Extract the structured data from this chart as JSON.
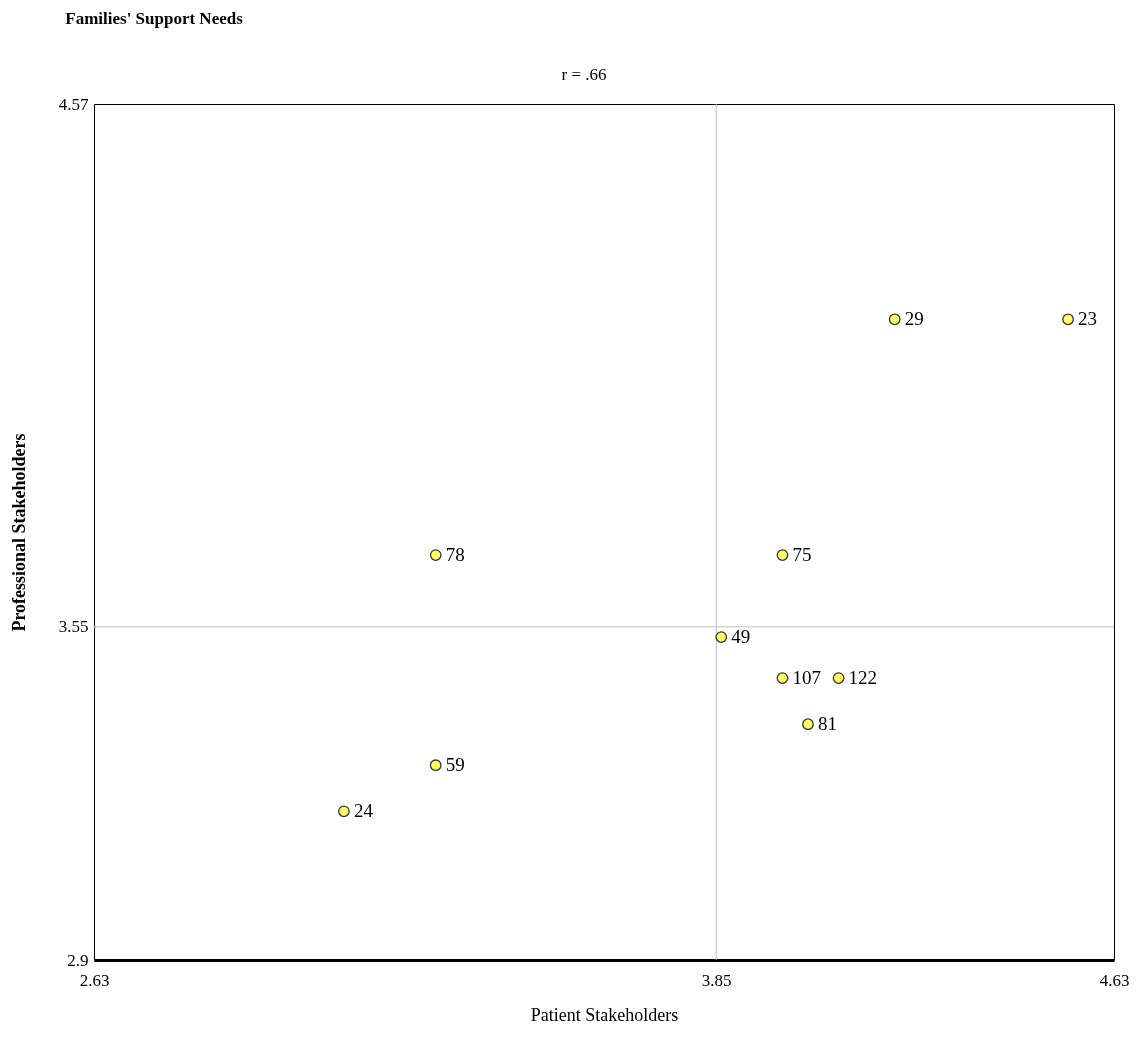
{
  "chart_data": {
    "type": "scatter",
    "title": "Families' Support Needs",
    "subtitle": "r = .66",
    "xlabel": "Patient Stakeholders",
    "ylabel": "Professional Stakeholders",
    "x": [
      4.2,
      4.54,
      3.3,
      3.98,
      3.86,
      3.98,
      4.09,
      4.03,
      3.3,
      3.12
    ],
    "series": [
      {
        "color": "#ffff66",
        "values": [
          4.15,
          4.15,
          3.69,
          3.69,
          3.53,
          3.45,
          3.45,
          3.36,
          3.28,
          3.19
        ]
      }
    ],
    "value_labels": [
      "29",
      "23",
      "78",
      "75",
      "49",
      "107",
      "122",
      "81",
      "59",
      "24"
    ],
    "xlim": [
      2.63,
      4.63
    ],
    "xticks": [
      2.63,
      3.85,
      4.63
    ],
    "ylim": [
      2.9,
      4.57
    ],
    "yticks": [
      2.9,
      3.55,
      4.57
    ],
    "ref_lines": [
      {
        "axis": "x",
        "value": 3.85,
        "color": "#c0c0c0"
      },
      {
        "axis": "y",
        "value": 3.55,
        "color": "#c0c0c0"
      }
    ],
    "marker": "circle",
    "grid": false,
    "legend": false
  }
}
